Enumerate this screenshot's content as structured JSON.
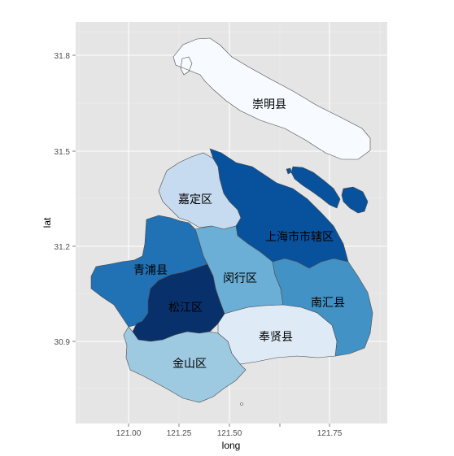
{
  "chart_data": {
    "type": "choropleth-map",
    "x_axis": {
      "label": "long",
      "ticks": [
        "121.00",
        "121.25",
        "121.50",
        "121.75"
      ]
    },
    "y_axis": {
      "label": "lat",
      "ticks": [
        "30.9",
        "31.2",
        "31.5",
        "31.8"
      ]
    },
    "grid": true,
    "legend": "none",
    "regions": [
      {
        "name": "崇明县",
        "color": "#f7fbff"
      },
      {
        "name": "嘉定区",
        "color": "#c6dbef"
      },
      {
        "name": "上海市市辖区",
        "color": "#08519c"
      },
      {
        "name": "青浦县",
        "color": "#2171b5"
      },
      {
        "name": "闵行区",
        "color": "#6baed6"
      },
      {
        "name": "南汇县",
        "color": "#4292c6"
      },
      {
        "name": "松江区",
        "color": "#08306b"
      },
      {
        "name": "奉贤县",
        "color": "#deebf7"
      },
      {
        "name": "金山区",
        "color": "#9ecae1"
      }
    ]
  }
}
